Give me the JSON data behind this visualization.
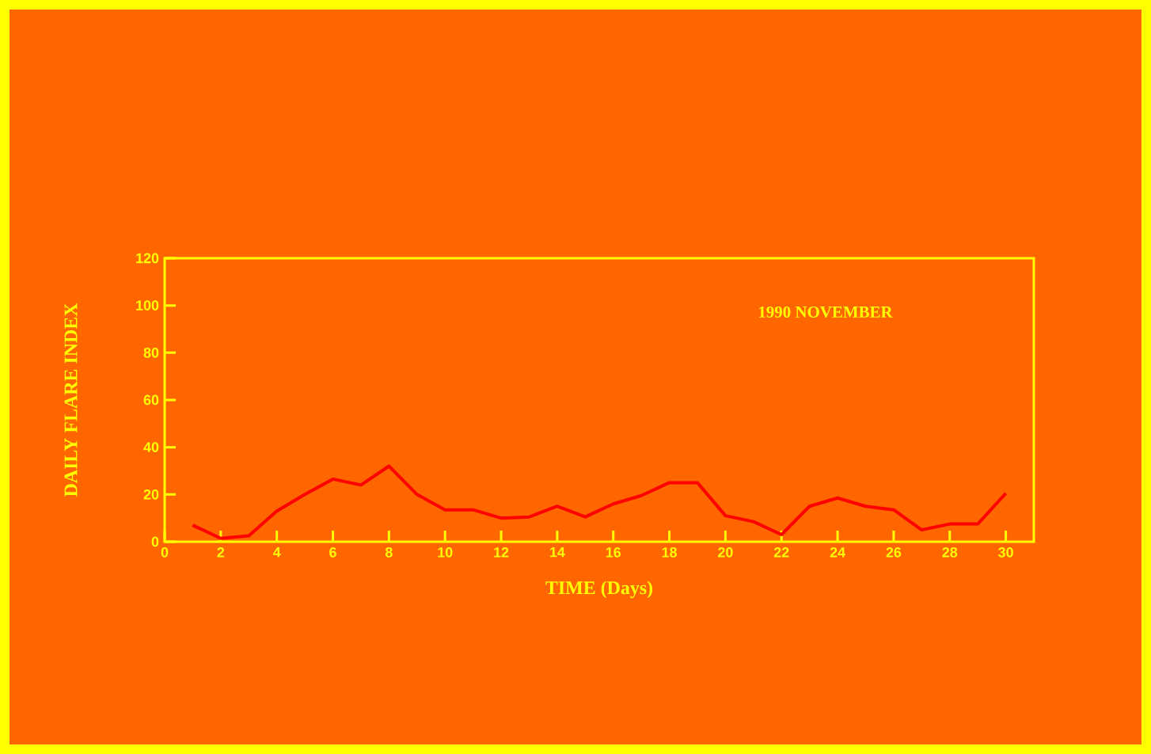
{
  "chart_data": {
    "type": "line",
    "title": "1990  NOVEMBER",
    "xlabel": "TIME (Days)",
    "ylabel": "DAILY FLARE INDEX",
    "x": [
      1,
      2,
      3,
      4,
      5,
      6,
      7,
      8,
      9,
      10,
      11,
      12,
      13,
      14,
      15,
      16,
      17,
      18,
      19,
      20,
      21,
      22,
      23,
      24,
      25,
      26,
      27,
      28,
      29,
      30
    ],
    "series": [
      {
        "color": "#ff0000",
        "values": [
          7,
          1.4,
          2.5,
          13,
          20,
          26.5,
          24,
          32,
          20,
          13.5,
          13.5,
          10,
          10.5,
          15,
          10.5,
          16,
          19.5,
          25,
          25,
          11,
          8.5,
          3,
          15,
          18.5,
          15,
          13.5,
          5,
          7.5,
          7.5,
          20.5
        ]
      }
    ],
    "xlim": [
      0,
      31
    ],
    "ylim": [
      0,
      120
    ],
    "xticks": [
      0,
      2,
      4,
      6,
      8,
      10,
      12,
      14,
      16,
      18,
      20,
      22,
      24,
      26,
      28,
      30
    ],
    "yticks": [
      0,
      20,
      40,
      60,
      80,
      100,
      120
    ],
    "marker": "none",
    "line_style": "solid"
  }
}
